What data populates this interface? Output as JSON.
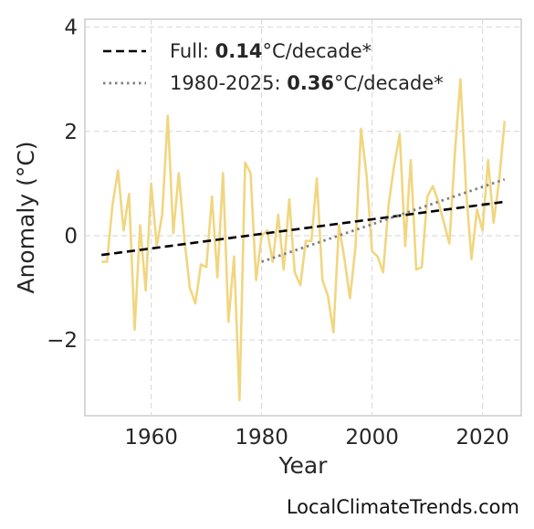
{
  "chart_data": {
    "type": "line",
    "xlabel": "Year",
    "ylabel": "Anomaly (°C)",
    "xlim": [
      1948,
      2027
    ],
    "ylim": [
      -3.45,
      4.15
    ],
    "xticks": [
      1960,
      1980,
      2000,
      2020
    ],
    "yticks": [
      4,
      2,
      0,
      -2
    ],
    "ytick_labels": [
      "4",
      "2",
      "0",
      "−2"
    ],
    "grid": true,
    "legend_position": "top-left",
    "series": [
      {
        "kind": "data",
        "color": "#f1d680",
        "x": [
          1951,
          1952,
          1953,
          1954,
          1955,
          1956,
          1957,
          1958,
          1959,
          1960,
          1961,
          1962,
          1963,
          1964,
          1965,
          1966,
          1967,
          1968,
          1969,
          1970,
          1971,
          1972,
          1973,
          1974,
          1975,
          1976,
          1977,
          1978,
          1979,
          1980,
          1981,
          1982,
          1983,
          1984,
          1985,
          1986,
          1987,
          1988,
          1989,
          1990,
          1991,
          1992,
          1993,
          1994,
          1995,
          1996,
          1997,
          1998,
          1999,
          2000,
          2001,
          2002,
          2003,
          2004,
          2005,
          2006,
          2007,
          2008,
          2009,
          2010,
          2011,
          2012,
          2013,
          2014,
          2015,
          2016,
          2017,
          2018,
          2019,
          2020,
          2021,
          2022,
          2023,
          2024
        ],
        "y": [
          -0.5,
          -0.5,
          0.6,
          1.25,
          0.1,
          0.8,
          -1.8,
          0.2,
          -1.05,
          1.0,
          -0.2,
          0.4,
          2.3,
          0.05,
          1.2,
          -0.05,
          -1.0,
          -1.3,
          -0.55,
          -0.6,
          0.75,
          -0.8,
          1.2,
          -1.65,
          -0.4,
          -3.15,
          1.4,
          1.2,
          -0.85,
          0.0,
          0.1,
          -0.5,
          0.4,
          -0.65,
          0.7,
          -0.7,
          -0.95,
          -0.1,
          -0.1,
          1.1,
          -0.85,
          -1.15,
          -1.85,
          0.2,
          -0.45,
          -1.2,
          -0.2,
          2.05,
          1.15,
          -0.3,
          -0.4,
          -0.7,
          0.6,
          1.35,
          1.95,
          -0.2,
          1.45,
          -0.65,
          -0.6,
          0.75,
          0.95,
          0.65,
          0.25,
          -0.15,
          1.6,
          3.0,
          0.9,
          -0.45,
          0.5,
          0.1,
          1.45,
          0.25,
          1.05,
          2.2
        ]
      },
      {
        "kind": "trend",
        "name": "Full",
        "style": "dashed",
        "color": "#000000",
        "x": [
          1951,
          2024
        ],
        "y": [
          -0.37,
          0.65
        ]
      },
      {
        "kind": "trend",
        "name": "1980-2025",
        "style": "dotted",
        "color": "#808080",
        "x": [
          1980,
          2024
        ],
        "y": [
          -0.5,
          1.08
        ]
      }
    ],
    "legend": [
      {
        "prefix": "Full: ",
        "value": "0.14",
        "suffix": "°C/decade*",
        "style": "dashed",
        "color": "#000000"
      },
      {
        "prefix": "1980-2025: ",
        "value": "0.36",
        "suffix": "°C/decade*",
        "style": "dotted",
        "color": "#808080"
      }
    ]
  },
  "watermark": "LocalClimateTrends.com"
}
